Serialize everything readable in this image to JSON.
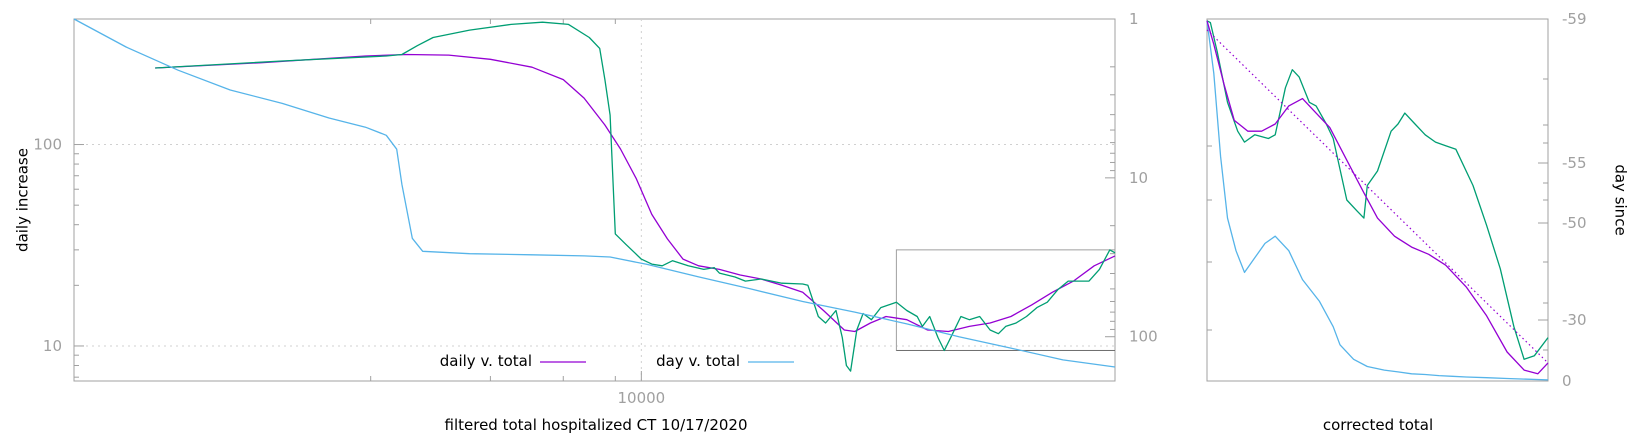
{
  "colors": {
    "daily": "#9400d3",
    "raw": "#009e73",
    "day": "#56b4e9",
    "frame": "#a0a0a0",
    "grid": "#d0d0d0"
  },
  "chart_data": [
    {
      "type": "line",
      "xlabel": "filtered total hospitalized CT 10/17/2020",
      "ylabel": "daily increase",
      "y_scale": "log",
      "ylim": [
        6.7,
        420
      ],
      "y2_scale": "log",
      "y2_reversed": true,
      "y2lim": [
        1,
        190
      ],
      "yticks": [
        {
          "value": 10,
          "label": "10"
        },
        {
          "value": 100,
          "label": "100"
        }
      ],
      "y2ticks": [
        {
          "value": 1,
          "label": "1"
        },
        {
          "value": 10,
          "label": "10"
        },
        {
          "value": 100,
          "label": "100"
        }
      ],
      "xticks": [
        {
          "frac": 0.545,
          "label": "10000"
        }
      ],
      "grid": true,
      "legend_position": "bottom-center",
      "series": [
        {
          "name": "daily v. total",
          "axis": "y",
          "points": [
            [
              0.078,
              240
            ],
            [
              0.18,
              255
            ],
            [
              0.28,
              275
            ],
            [
              0.32,
              280
            ],
            [
              0.36,
              278
            ],
            [
              0.4,
              265
            ],
            [
              0.44,
              242
            ],
            [
              0.47,
              210
            ],
            [
              0.49,
              170
            ],
            [
              0.51,
              125
            ],
            [
              0.525,
              95
            ],
            [
              0.54,
              68
            ],
            [
              0.555,
              45
            ],
            [
              0.57,
              34
            ],
            [
              0.585,
              27
            ],
            [
              0.6,
              25
            ],
            [
              0.62,
              24
            ],
            [
              0.64,
              22.5
            ],
            [
              0.66,
              21.5
            ],
            [
              0.68,
              20
            ],
            [
              0.7,
              18.5
            ],
            [
              0.72,
              15
            ],
            [
              0.74,
              12
            ],
            [
              0.75,
              11.8
            ],
            [
              0.765,
              13
            ],
            [
              0.78,
              14
            ],
            [
              0.8,
              13.5
            ],
            [
              0.82,
              12
            ],
            [
              0.84,
              11.8
            ],
            [
              0.86,
              12.5
            ],
            [
              0.88,
              13
            ],
            [
              0.9,
              14
            ],
            [
              0.92,
              16
            ],
            [
              0.94,
              18.5
            ],
            [
              0.96,
              21
            ],
            [
              0.98,
              25
            ],
            [
              1.0,
              28
            ]
          ]
        },
        {
          "name": "",
          "axis": "y",
          "points": [
            [
              0.078,
              240
            ],
            [
              0.2,
              260
            ],
            [
              0.3,
              275
            ],
            [
              0.315,
              280
            ],
            [
              0.33,
              310
            ],
            [
              0.345,
              340
            ],
            [
              0.38,
              370
            ],
            [
              0.42,
              395
            ],
            [
              0.45,
              405
            ],
            [
              0.475,
              395
            ],
            [
              0.495,
              340
            ],
            [
              0.505,
              300
            ],
            [
              0.51,
              210
            ],
            [
              0.515,
              140
            ],
            [
              0.52,
              36
            ],
            [
              0.53,
              32
            ],
            [
              0.545,
              27
            ],
            [
              0.555,
              25.5
            ],
            [
              0.565,
              25
            ],
            [
              0.575,
              26.5
            ],
            [
              0.59,
              25
            ],
            [
              0.605,
              24
            ],
            [
              0.615,
              24.5
            ],
            [
              0.62,
              23
            ],
            [
              0.635,
              22
            ],
            [
              0.645,
              21
            ],
            [
              0.66,
              21.5
            ],
            [
              0.68,
              20.5
            ],
            [
              0.7,
              20.3
            ],
            [
              0.705,
              20
            ],
            [
              0.715,
              14
            ],
            [
              0.722,
              13
            ],
            [
              0.732,
              15
            ],
            [
              0.738,
              11
            ],
            [
              0.742,
              8
            ],
            [
              0.746,
              7.5
            ],
            [
              0.752,
              12
            ],
            [
              0.758,
              14.5
            ],
            [
              0.766,
              13.5
            ],
            [
              0.775,
              15.5
            ],
            [
              0.79,
              16.5
            ],
            [
              0.8,
              15
            ],
            [
              0.81,
              14
            ],
            [
              0.815,
              12.5
            ],
            [
              0.822,
              14
            ],
            [
              0.83,
              11
            ],
            [
              0.836,
              9.5
            ],
            [
              0.844,
              11.5
            ],
            [
              0.852,
              14
            ],
            [
              0.86,
              13.5
            ],
            [
              0.87,
              14
            ],
            [
              0.88,
              12
            ],
            [
              0.888,
              11.5
            ],
            [
              0.895,
              12.5
            ],
            [
              0.905,
              13
            ],
            [
              0.915,
              14
            ],
            [
              0.925,
              15.5
            ],
            [
              0.935,
              16.5
            ],
            [
              0.945,
              19
            ],
            [
              0.955,
              21
            ],
            [
              0.965,
              21
            ],
            [
              0.975,
              21
            ],
            [
              0.985,
              24
            ],
            [
              0.995,
              30
            ],
            [
              1.0,
              29
            ]
          ]
        },
        {
          "name": "day v. total",
          "axis": "y2",
          "points": [
            [
              0.0,
              1
            ],
            [
              0.05,
              1.5
            ],
            [
              0.1,
              2.1
            ],
            [
              0.15,
              2.8
            ],
            [
              0.2,
              3.4
            ],
            [
              0.245,
              4.2
            ],
            [
              0.28,
              4.8
            ],
            [
              0.3,
              5.4
            ],
            [
              0.31,
              6.6
            ],
            [
              0.315,
              11
            ],
            [
              0.325,
              24
            ],
            [
              0.335,
              29
            ],
            [
              0.38,
              30
            ],
            [
              0.44,
              30.5
            ],
            [
              0.49,
              31
            ],
            [
              0.515,
              31.5
            ],
            [
              0.55,
              35
            ],
            [
              0.6,
              42
            ],
            [
              0.65,
              50
            ],
            [
              0.7,
              60
            ],
            [
              0.75,
              70
            ],
            [
              0.8,
              83
            ],
            [
              0.85,
              100
            ],
            [
              0.9,
              118
            ],
            [
              0.95,
              140
            ],
            [
              1.0,
              155
            ]
          ]
        }
      ],
      "inset_box": {
        "x_from": 0.79,
        "x_to": 1.0,
        "y_from": 9.5,
        "y_to": 30
      }
    },
    {
      "type": "line",
      "xlabel": "corrected total",
      "y2label": "day since",
      "y2ticks": [
        {
          "value": -59,
          "label": "-59"
        },
        {
          "value": -55,
          "label": "-55"
        },
        {
          "value": -50,
          "label": "-50"
        },
        {
          "value": -30,
          "label": "-30"
        },
        {
          "value": 0,
          "label": "0"
        }
      ],
      "grid": false,
      "series": [
        {
          "name": "",
          "points": [
            [
              0.0,
              0.995
            ],
            [
              0.02,
              0.85
            ],
            [
              0.04,
              0.62
            ],
            [
              0.06,
              0.45
            ],
            [
              0.085,
              0.36
            ],
            [
              0.11,
              0.3
            ],
            [
              0.14,
              0.34
            ],
            [
              0.17,
              0.38
            ],
            [
              0.2,
              0.4
            ],
            [
              0.24,
              0.36
            ],
            [
              0.28,
              0.28
            ],
            [
              0.33,
              0.22
            ],
            [
              0.37,
              0.15
            ],
            [
              0.39,
              0.1
            ],
            [
              0.43,
              0.06
            ],
            [
              0.47,
              0.04
            ],
            [
              0.52,
              0.03
            ],
            [
              0.56,
              0.025
            ],
            [
              0.6,
              0.02
            ],
            [
              0.64,
              0.018
            ],
            [
              0.68,
              0.015
            ],
            [
              0.72,
              0.013
            ],
            [
              0.76,
              0.011
            ],
            [
              0.82,
              0.009
            ],
            [
              0.88,
              0.007
            ],
            [
              0.94,
              0.005
            ],
            [
              1.0,
              0.003
            ]
          ]
        },
        {
          "name": "",
          "points": [
            [
              0.0,
              0.995
            ],
            [
              0.01,
              0.99
            ],
            [
              0.03,
              0.91
            ],
            [
              0.06,
              0.77
            ],
            [
              0.09,
              0.69
            ],
            [
              0.11,
              0.66
            ],
            [
              0.14,
              0.68
            ],
            [
              0.18,
              0.67
            ],
            [
              0.2,
              0.68
            ],
            [
              0.23,
              0.81
            ],
            [
              0.25,
              0.86
            ],
            [
              0.27,
              0.84
            ],
            [
              0.3,
              0.77
            ],
            [
              0.32,
              0.76
            ],
            [
              0.35,
              0.71
            ],
            [
              0.37,
              0.67
            ],
            [
              0.41,
              0.5
            ],
            [
              0.44,
              0.47
            ],
            [
              0.46,
              0.45
            ],
            [
              0.47,
              0.54
            ],
            [
              0.5,
              0.58
            ],
            [
              0.54,
              0.69
            ],
            [
              0.56,
              0.71
            ],
            [
              0.58,
              0.74
            ],
            [
              0.61,
              0.71
            ],
            [
              0.64,
              0.68
            ],
            [
              0.67,
              0.66
            ],
            [
              0.7,
              0.65
            ],
            [
              0.73,
              0.64
            ],
            [
              0.78,
              0.54
            ],
            [
              0.82,
              0.43
            ],
            [
              0.86,
              0.31
            ],
            [
              0.9,
              0.15
            ],
            [
              0.93,
              0.06
            ],
            [
              0.96,
              0.07
            ],
            [
              1.0,
              0.12
            ]
          ]
        },
        {
          "name": "",
          "points": [
            [
              0.0,
              0.995
            ],
            [
              0.02,
              0.93
            ],
            [
              0.05,
              0.82
            ],
            [
              0.08,
              0.72
            ],
            [
              0.12,
              0.69
            ],
            [
              0.16,
              0.69
            ],
            [
              0.2,
              0.71
            ],
            [
              0.24,
              0.76
            ],
            [
              0.28,
              0.78
            ],
            [
              0.32,
              0.74
            ],
            [
              0.36,
              0.7
            ],
            [
              0.41,
              0.61
            ],
            [
              0.46,
              0.52
            ],
            [
              0.5,
              0.45
            ],
            [
              0.55,
              0.4
            ],
            [
              0.6,
              0.37
            ],
            [
              0.65,
              0.35
            ],
            [
              0.7,
              0.32
            ],
            [
              0.76,
              0.26
            ],
            [
              0.82,
              0.18
            ],
            [
              0.88,
              0.08
            ],
            [
              0.93,
              0.03
            ],
            [
              0.97,
              0.02
            ],
            [
              1.0,
              0.05
            ]
          ]
        },
        {
          "name": "",
          "points": [
            [
              0.0,
              0.97
            ],
            [
              1.0,
              0.05
            ]
          ]
        }
      ]
    }
  ]
}
